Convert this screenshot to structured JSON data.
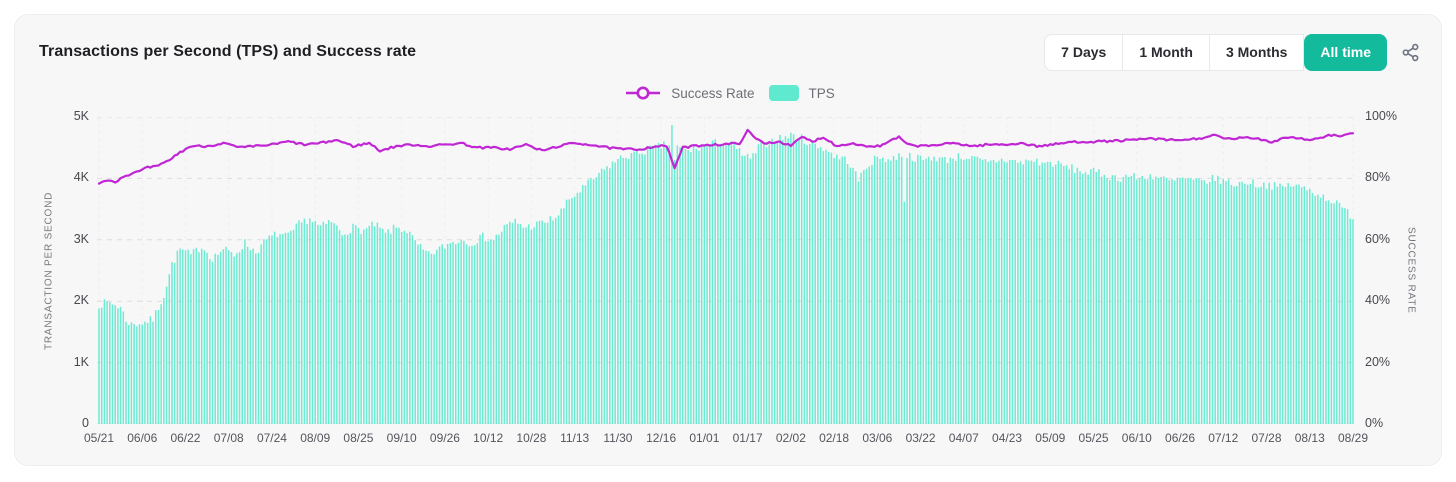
{
  "header": {
    "title": "Transactions per Second (TPS) and Success rate",
    "range_buttons": [
      {
        "label": "7 Days",
        "active": false
      },
      {
        "label": "1 Month",
        "active": false
      },
      {
        "label": "3 Months",
        "active": false
      },
      {
        "label": "All time",
        "active": true
      }
    ]
  },
  "legend": {
    "items": [
      {
        "label": "Success Rate",
        "type": "line",
        "color": "#c026d3"
      },
      {
        "label": "TPS",
        "type": "bar",
        "color": "#5fe9ce"
      }
    ]
  },
  "colors": {
    "card_bg": "#f7f7f8",
    "active_button_bg": "#13ba9c",
    "bar": "#5fe9ce",
    "line": "#c026d3",
    "grid": "#dcdce2",
    "icon": "#6b7280"
  },
  "chart_data": {
    "type": "combo-bar-line",
    "title": "Transactions per Second (TPS) and Success rate",
    "x_tick_labels": [
      "05/21",
      "06/06",
      "06/22",
      "07/08",
      "07/24",
      "08/09",
      "08/25",
      "09/10",
      "09/26",
      "10/12",
      "10/28",
      "11/13",
      "11/30",
      "12/16",
      "01/01",
      "01/17",
      "02/02",
      "02/18",
      "03/06",
      "03/22",
      "04/07",
      "04/23",
      "05/09",
      "05/25",
      "06/10",
      "06/26",
      "07/12",
      "07/28",
      "08/13",
      "08/29"
    ],
    "x_tick_interval_days": 16,
    "days_total": 465,
    "seed": 7,
    "left_axis": {
      "title": "TRANSACTION PER SECOND",
      "ticks": [
        "0",
        "1K",
        "2K",
        "3K",
        "4K",
        "5K"
      ],
      "min": 0,
      "max": 5000
    },
    "right_axis": {
      "title": "SUCCESS RATE",
      "ticks": [
        "0%",
        "20%",
        "40%",
        "60%",
        "80%",
        "100%"
      ],
      "min": 0,
      "max": 100
    },
    "grid": "horizontal-dashed",
    "series": [
      {
        "name": "TPS",
        "type": "bar",
        "axis": "left",
        "color": "#5fe9ce",
        "jitter": 70,
        "keypoints": [
          [
            0,
            1950
          ],
          [
            4,
            1980
          ],
          [
            8,
            1900
          ],
          [
            10,
            1700
          ],
          [
            12,
            1620
          ],
          [
            16,
            1650
          ],
          [
            20,
            1700
          ],
          [
            24,
            2100
          ],
          [
            27,
            2600
          ],
          [
            30,
            2850
          ],
          [
            34,
            2750
          ],
          [
            38,
            2900
          ],
          [
            42,
            2700
          ],
          [
            46,
            2850
          ],
          [
            50,
            2750
          ],
          [
            54,
            2950
          ],
          [
            58,
            2800
          ],
          [
            62,
            3000
          ],
          [
            66,
            3100
          ],
          [
            70,
            3050
          ],
          [
            74,
            3250
          ],
          [
            78,
            3350
          ],
          [
            82,
            3200
          ],
          [
            86,
            3300
          ],
          [
            90,
            3100
          ],
          [
            94,
            3200
          ],
          [
            98,
            3150
          ],
          [
            102,
            3250
          ],
          [
            106,
            3100
          ],
          [
            110,
            3200
          ],
          [
            114,
            3150
          ],
          [
            118,
            2900
          ],
          [
            122,
            2750
          ],
          [
            126,
            2850
          ],
          [
            130,
            2950
          ],
          [
            134,
            3000
          ],
          [
            138,
            2950
          ],
          [
            142,
            3050
          ],
          [
            146,
            3000
          ],
          [
            150,
            3200
          ],
          [
            154,
            3300
          ],
          [
            158,
            3200
          ],
          [
            162,
            3250
          ],
          [
            166,
            3300
          ],
          [
            170,
            3400
          ],
          [
            174,
            3650
          ],
          [
            178,
            3800
          ],
          [
            182,
            3950
          ],
          [
            186,
            4100
          ],
          [
            190,
            4250
          ],
          [
            194,
            4350
          ],
          [
            198,
            4400
          ],
          [
            202,
            4450
          ],
          [
            206,
            4500
          ],
          [
            210,
            4550
          ],
          [
            214,
            4500
          ],
          [
            218,
            4450
          ],
          [
            222,
            4500
          ],
          [
            226,
            4550
          ],
          [
            230,
            4600
          ],
          [
            234,
            4550
          ],
          [
            238,
            4400
          ],
          [
            241,
            4300
          ],
          [
            244,
            4500
          ],
          [
            248,
            4600
          ],
          [
            252,
            4650
          ],
          [
            256,
            4700
          ],
          [
            260,
            4650
          ],
          [
            264,
            4550
          ],
          [
            268,
            4500
          ],
          [
            273,
            4350
          ],
          [
            277,
            4300
          ],
          [
            281,
            3980
          ],
          [
            285,
            4250
          ],
          [
            289,
            4350
          ],
          [
            293,
            4300
          ],
          [
            297,
            4400
          ],
          [
            301,
            4350
          ],
          [
            305,
            4300
          ],
          [
            309,
            4350
          ],
          [
            313,
            4300
          ],
          [
            317,
            4350
          ],
          [
            321,
            4350
          ],
          [
            325,
            4300
          ],
          [
            329,
            4250
          ],
          [
            333,
            4300
          ],
          [
            337,
            4300
          ],
          [
            341,
            4250
          ],
          [
            345,
            4300
          ],
          [
            349,
            4250
          ],
          [
            353,
            4250
          ],
          [
            357,
            4200
          ],
          [
            361,
            4150
          ],
          [
            365,
            4100
          ],
          [
            369,
            4100
          ],
          [
            373,
            4050
          ],
          [
            377,
            4000
          ],
          [
            381,
            4050
          ],
          [
            385,
            4000
          ],
          [
            389,
            4050
          ],
          [
            393,
            4000
          ],
          [
            397,
            3950
          ],
          [
            401,
            4000
          ],
          [
            405,
            3950
          ],
          [
            409,
            3950
          ],
          [
            413,
            4000
          ],
          [
            417,
            3950
          ],
          [
            421,
            3900
          ],
          [
            425,
            3950
          ],
          [
            429,
            3900
          ],
          [
            433,
            3900
          ],
          [
            437,
            3850
          ],
          [
            441,
            3900
          ],
          [
            445,
            3850
          ],
          [
            449,
            3800
          ],
          [
            453,
            3700
          ],
          [
            456,
            3650
          ],
          [
            459,
            3550
          ],
          [
            462,
            3450
          ],
          [
            464,
            3380
          ]
        ],
        "anomalies": [
          [
            212,
            4870
          ],
          [
            213,
            4300
          ],
          [
            298,
            3620
          ]
        ]
      },
      {
        "name": "Success Rate",
        "type": "line",
        "axis": "right",
        "color": "#c026d3",
        "jitter": 0.35,
        "keypoints": [
          [
            0,
            78.5
          ],
          [
            3,
            79.5
          ],
          [
            6,
            79
          ],
          [
            10,
            81
          ],
          [
            14,
            82
          ],
          [
            18,
            83.5
          ],
          [
            22,
            84
          ],
          [
            26,
            86
          ],
          [
            30,
            88.5
          ],
          [
            34,
            90.5
          ],
          [
            40,
            90.5
          ],
          [
            46,
            91.5
          ],
          [
            52,
            90
          ],
          [
            58,
            90.5
          ],
          [
            64,
            91
          ],
          [
            70,
            92
          ],
          [
            76,
            91
          ],
          [
            82,
            91.5
          ],
          [
            88,
            92.5
          ],
          [
            94,
            90.5
          ],
          [
            100,
            91.5
          ],
          [
            104,
            89
          ],
          [
            110,
            90.5
          ],
          [
            116,
            91
          ],
          [
            122,
            90.5
          ],
          [
            128,
            91
          ],
          [
            134,
            91.5
          ],
          [
            140,
            90
          ],
          [
            146,
            90
          ],
          [
            152,
            89.5
          ],
          [
            158,
            91
          ],
          [
            164,
            89
          ],
          [
            170,
            90.5
          ],
          [
            176,
            91.5
          ],
          [
            182,
            91
          ],
          [
            188,
            90
          ],
          [
            194,
            89.5
          ],
          [
            200,
            89.5
          ],
          [
            206,
            90.5
          ],
          [
            210,
            90.5
          ],
          [
            213,
            83.5
          ],
          [
            216,
            90
          ],
          [
            220,
            90.5
          ],
          [
            225,
            91
          ],
          [
            231,
            91
          ],
          [
            237,
            91.5
          ],
          [
            240,
            95.5
          ],
          [
            243,
            93
          ],
          [
            246,
            91.5
          ],
          [
            252,
            92
          ],
          [
            256,
            90.5
          ],
          [
            260,
            93.5
          ],
          [
            264,
            92
          ],
          [
            268,
            93.5
          ],
          [
            273,
            90.5
          ],
          [
            278,
            91.5
          ],
          [
            284,
            90.5
          ],
          [
            289,
            90.5
          ],
          [
            296,
            93.5
          ],
          [
            299,
            91
          ],
          [
            305,
            90.5
          ],
          [
            311,
            91
          ],
          [
            317,
            91.5
          ],
          [
            323,
            90.5
          ],
          [
            329,
            91
          ],
          [
            335,
            91
          ],
          [
            341,
            91.5
          ],
          [
            347,
            90.5
          ],
          [
            353,
            91
          ],
          [
            359,
            91.8
          ],
          [
            365,
            92
          ],
          [
            371,
            92
          ],
          [
            377,
            92.3
          ],
          [
            383,
            92.5
          ],
          [
            389,
            93
          ],
          [
            395,
            92.5
          ],
          [
            401,
            92.5
          ],
          [
            407,
            93
          ],
          [
            413,
            94
          ],
          [
            417,
            92.8
          ],
          [
            423,
            93.2
          ],
          [
            429,
            93
          ],
          [
            434,
            91.8
          ],
          [
            439,
            93.5
          ],
          [
            445,
            93
          ],
          [
            449,
            92.5
          ],
          [
            455,
            94
          ],
          [
            460,
            93.8
          ],
          [
            464,
            94.5
          ]
        ]
      }
    ]
  }
}
